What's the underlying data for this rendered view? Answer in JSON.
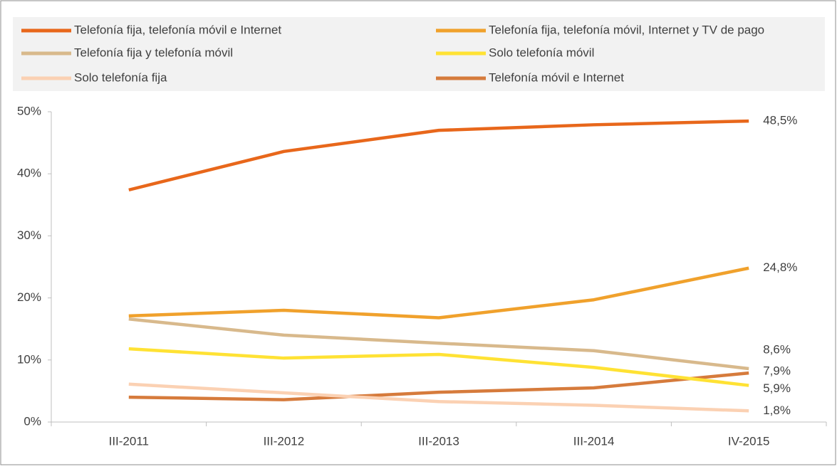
{
  "chart_data": {
    "type": "line",
    "categories": [
      "III-2011",
      "III-2012",
      "III-2013",
      "III-2014",
      "IV-2015"
    ],
    "series": [
      {
        "name": "Telefonía fija, telefonía móvil e Internet",
        "color": "#e8671b",
        "values": [
          37.4,
          43.6,
          47.0,
          47.9,
          48.5
        ],
        "value_labels": [
          null,
          null,
          null,
          null,
          "48,5%"
        ]
      },
      {
        "name": "Telefonía fija, telefonía móvil, Internet y TV de pago",
        "color": "#f0a12c",
        "values": [
          17.1,
          18.0,
          16.8,
          19.7,
          24.8
        ],
        "value_labels": [
          null,
          null,
          null,
          null,
          "24,8%"
        ]
      },
      {
        "name": "Telefonía fija y telefonía móvil",
        "color": "#d8b98c",
        "values": [
          16.6,
          14.0,
          12.7,
          11.5,
          8.6
        ],
        "value_labels": [
          null,
          null,
          null,
          null,
          "8,6%"
        ]
      },
      {
        "name": "Solo telefonía móvil",
        "color": "#ffe234",
        "values": [
          11.8,
          10.3,
          10.9,
          8.8,
          5.9
        ],
        "value_labels": [
          null,
          null,
          null,
          null,
          "5,9%"
        ]
      },
      {
        "name": "Solo telefonía fija",
        "color": "#fbd1b3",
        "values": [
          6.1,
          4.7,
          3.3,
          2.7,
          1.8
        ],
        "value_labels": [
          null,
          null,
          null,
          null,
          "1,8%"
        ]
      },
      {
        "name": "Telefonía móvil e Internet",
        "color": "#d67b3c",
        "values": [
          4.0,
          3.6,
          4.8,
          5.5,
          7.9
        ],
        "value_labels": [
          null,
          null,
          null,
          null,
          "7,9%"
        ]
      }
    ],
    "ylim": [
      0,
      50
    ],
    "yticks": [
      {
        "value": 0,
        "label": "0%"
      },
      {
        "value": 10,
        "label": "10%"
      },
      {
        "value": 20,
        "label": "20%"
      },
      {
        "value": 30,
        "label": "30%"
      },
      {
        "value": 40,
        "label": "40%"
      },
      {
        "value": 50,
        "label": "50%"
      }
    ],
    "grid": false,
    "legend": "top"
  }
}
